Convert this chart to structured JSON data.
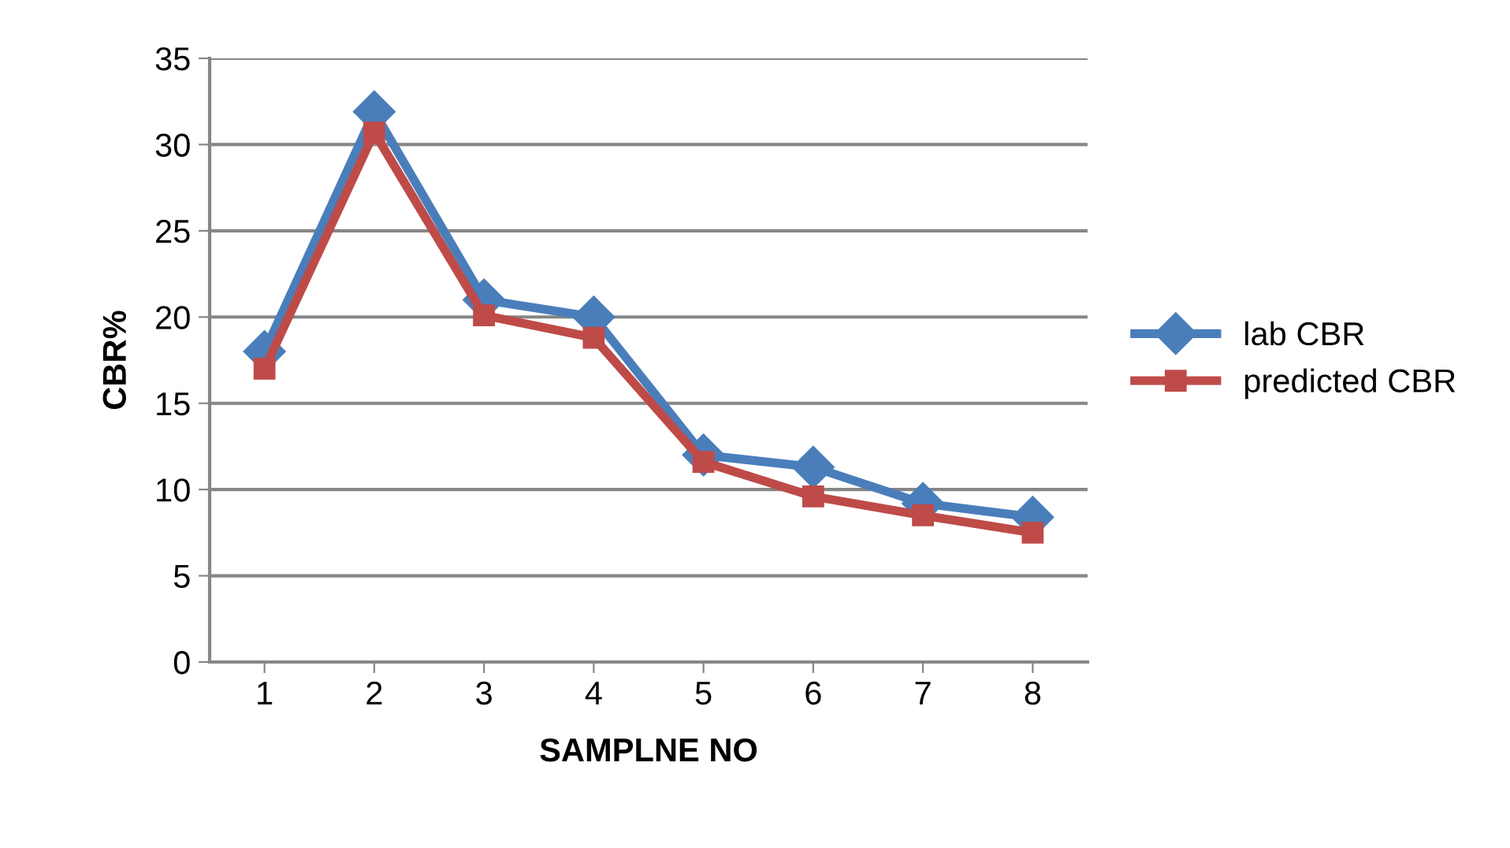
{
  "chart_data": {
    "type": "line",
    "xlabel": "SAMPLNE NO",
    "ylabel": "CBR%",
    "categories": [
      "1",
      "2",
      "3",
      "4",
      "5",
      "6",
      "7",
      "8"
    ],
    "series": [
      {
        "name": "lab CBR",
        "color": "#4a7ebb",
        "marker": "diamond",
        "values": [
          18,
          31.9,
          21,
          20,
          12,
          11.3,
          9.2,
          8.4
        ]
      },
      {
        "name": "predicted CBR",
        "color": "#be4b48",
        "marker": "square",
        "values": [
          17,
          30.7,
          20.1,
          18.8,
          11.6,
          9.6,
          8.5,
          7.5
        ]
      }
    ],
    "ylim": [
      0,
      35
    ],
    "yticks": [
      0,
      5,
      10,
      15,
      20,
      25,
      30,
      35
    ],
    "grid": "y",
    "legend": "right"
  }
}
